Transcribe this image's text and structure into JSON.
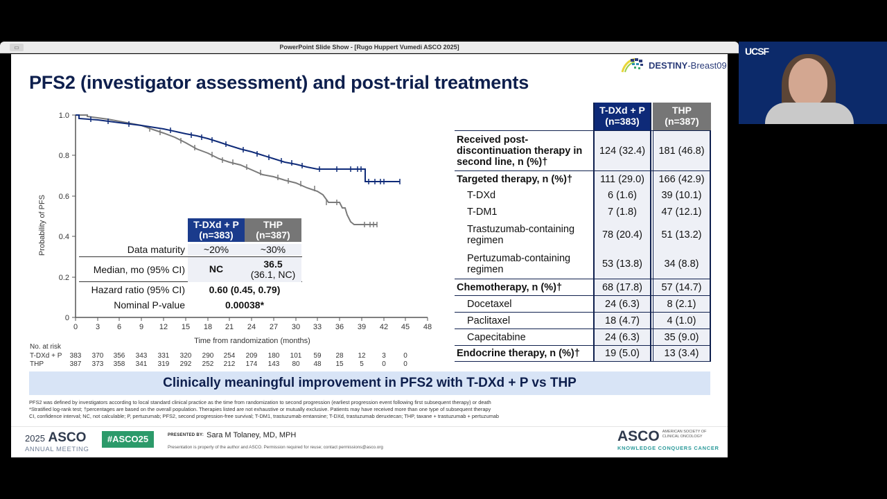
{
  "window": {
    "title": "PowerPoint Slide Show - [Rugo Huppert Vumedi ASCO 2025]"
  },
  "slide": {
    "title": "PFS2 (investigator assessment) and post-trial treatments",
    "logo": {
      "name": "DESTINY",
      "suffix": "-Breast09"
    },
    "banner": "Clinically meaningful improvement in PFS2 with T-DXd + P vs THP",
    "footnotes": [
      "PFS2 was defined by investigators according to local standard clinical practice as the time from randomization to second progression (earliest progression event following first subsequent therapy) or death",
      "*Stratified log-rank test; †percentages are based on the overall population. Therapies listed are not exhaustive or mutually exclusive. Patients may have received more than one type of subsequent therapy",
      "CI, confidence interval; NC, not calculable; P, pertuzumab; PFS2, second progression-free survival; T-DM1, trastuzumab emtansine; T-DXd, trastuzumab deruxtecan; THP, taxane + trastuzumab + pertuzumab"
    ],
    "footer": {
      "year": "2025",
      "asco": "ASCO",
      "meeting": "ANNUAL MEETING",
      "hashtag": "#ASCO25",
      "presented_by_label": "PRESENTED BY:",
      "presenter": "Sara M Tolaney, MD, MPH",
      "note": "Presentation is property of the author and ASCO. Permission required for reuse; contact permissions@asco.org",
      "asco_right": "ASCO",
      "asco_org_line1": "AMERICAN SOCIETY OF",
      "asco_org_line2": "CLINICAL ONCOLOGY",
      "tagline": "KNOWLEDGE CONQUERS CANCER"
    }
  },
  "inner_table": {
    "headers": [
      {
        "line1": "T-DXd + P",
        "line2": "(n=383)"
      },
      {
        "line1": "THP",
        "line2": "(n=387)"
      }
    ],
    "rows": {
      "maturity": {
        "label": "Data maturity",
        "v1": "~20%",
        "v2": "~30%"
      },
      "median": {
        "label": "Median, mo (95% CI)",
        "v1": "NC",
        "v2": "36.5",
        "v2b": "(36.1, NC)"
      },
      "hr": {
        "label": "Hazard ratio (95% CI)",
        "value": "0.60 (0.45, 0.79)"
      },
      "p": {
        "label": "Nominal P-value",
        "value": "0.00038*"
      }
    }
  },
  "risk_table": {
    "title": "No. at risk",
    "rows": [
      {
        "label": "T-DXd + P",
        "values": [
          "383",
          "370",
          "356",
          "343",
          "331",
          "320",
          "290",
          "254",
          "209",
          "180",
          "101",
          "59",
          "28",
          "12",
          "3",
          "0"
        ]
      },
      {
        "label": "THP",
        "values": [
          "387",
          "373",
          "358",
          "341",
          "319",
          "292",
          "252",
          "212",
          "174",
          "143",
          "80",
          "48",
          "15",
          "5",
          "0",
          "0"
        ]
      }
    ]
  },
  "right_table": {
    "headers": [
      {
        "line1": "T-DXd + P",
        "line2": "(n=383)"
      },
      {
        "line1": "THP",
        "line2": "(n=387)"
      }
    ],
    "rows": [
      {
        "label": "Received post-discontinuation therapy in second line, n (%)†",
        "v1": "124 (32.4)",
        "v2": "181 (46.8)",
        "bold": true
      },
      {
        "label": "Targeted therapy, n (%)†",
        "v1": "111 (29.0)",
        "v2": "166 (42.9)",
        "bold": true
      },
      {
        "label": "T-DXd",
        "v1": "6 (1.6)",
        "v2": "39 (10.1)"
      },
      {
        "label": "T-DM1",
        "v1": "7 (1.8)",
        "v2": "47 (12.1)"
      },
      {
        "label": "Trastuzumab-containing regimen",
        "v1": "78 (20.4)",
        "v2": "51 (13.2)"
      },
      {
        "label": "Pertuzumab-containing regimen",
        "v1": "53 (13.8)",
        "v2": "34 (8.8)"
      },
      {
        "label": "Chemotherapy, n (%)†",
        "v1": "68 (17.8)",
        "v2": "57 (14.7)",
        "bold": true
      },
      {
        "label": "Docetaxel",
        "v1": "24 (6.3)",
        "v2": "8 (2.1)"
      },
      {
        "label": "Paclitaxel",
        "v1": "18 (4.7)",
        "v2": "4 (1.0)"
      },
      {
        "label": "Capecitabine",
        "v1": "24 (6.3)",
        "v2": "35 (9.0)"
      },
      {
        "label": "Endocrine therapy, n (%)†",
        "v1": "19 (5.0)",
        "v2": "13 (3.4)",
        "bold": true
      }
    ]
  },
  "webcam": {
    "label": "UCSF"
  },
  "chart_data": {
    "type": "line",
    "title": "PFS2 (investigator assessment)",
    "xlabel": "Time from randomization (months)",
    "ylabel": "Probability of PFS",
    "xlim": [
      0,
      48
    ],
    "ylim": [
      0,
      1.0
    ],
    "xticks": [
      0,
      3,
      6,
      9,
      12,
      15,
      18,
      21,
      24,
      27,
      30,
      33,
      36,
      39,
      42,
      45,
      48
    ],
    "yticks": [
      0,
      0.2,
      0.4,
      0.6,
      0.8,
      1.0
    ],
    "grid": false,
    "colors": {
      "T-DXd + P": "#0e2a78",
      "THP": "#7a7a7a"
    },
    "series": [
      {
        "name": "T-DXd + P",
        "x": [
          0,
          1,
          3,
          6,
          9,
          12,
          15,
          18,
          21,
          24,
          27,
          30,
          33,
          36,
          39,
          39.5,
          44.5
        ],
        "y": [
          1.0,
          0.98,
          0.975,
          0.96,
          0.95,
          0.93,
          0.92,
          0.88,
          0.84,
          0.81,
          0.78,
          0.76,
          0.75,
          0.75,
          0.75,
          0.66,
          0.66
        ]
      },
      {
        "name": "THP",
        "x": [
          0,
          3,
          6,
          9,
          12,
          15,
          18,
          21,
          24,
          27,
          30,
          33,
          35,
          36,
          37,
          38,
          41.5
        ],
        "y": [
          1.0,
          0.98,
          0.96,
          0.94,
          0.91,
          0.86,
          0.8,
          0.76,
          0.73,
          0.7,
          0.67,
          0.62,
          0.57,
          0.55,
          0.5,
          0.45,
          0.45
        ]
      }
    ]
  }
}
